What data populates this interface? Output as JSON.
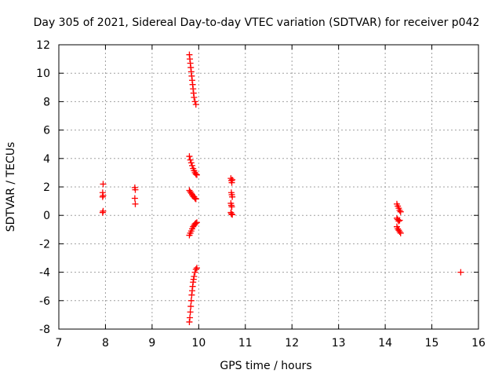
{
  "chart_data": {
    "type": "scatter",
    "title": "Day 305 of 2021, Sidereal Day-to-day VTEC variation (SDTVAR) for receiver p042",
    "xlabel": "GPS time / hours",
    "ylabel": "SDTVAR / TECUs",
    "xlim": [
      7,
      16
    ],
    "ylim": [
      -8,
      12
    ],
    "xticks": [
      7,
      8,
      9,
      10,
      11,
      12,
      13,
      14,
      15,
      16
    ],
    "yticks": [
      -8,
      -6,
      -4,
      -2,
      0,
      2,
      4,
      6,
      8,
      10,
      12
    ],
    "grid": true,
    "marker": "+",
    "series": [
      {
        "name": "SDTVAR",
        "color": "#ff0000",
        "points": [
          [
            7.95,
            2.2
          ],
          [
            7.94,
            1.6
          ],
          [
            7.95,
            1.4
          ],
          [
            7.94,
            1.3
          ],
          [
            7.95,
            0.3
          ],
          [
            7.94,
            0.2
          ],
          [
            8.63,
            1.95
          ],
          [
            8.64,
            1.8
          ],
          [
            8.63,
            1.2
          ],
          [
            8.64,
            0.8
          ],
          [
            9.8,
            11.3
          ],
          [
            9.81,
            11.0
          ],
          [
            9.82,
            10.7
          ],
          [
            9.83,
            10.4
          ],
          [
            9.84,
            10.1
          ],
          [
            9.85,
            9.8
          ],
          [
            9.86,
            9.5
          ],
          [
            9.87,
            9.2
          ],
          [
            9.88,
            8.9
          ],
          [
            9.89,
            8.6
          ],
          [
            9.9,
            8.3
          ],
          [
            9.92,
            8.0
          ],
          [
            9.94,
            7.8
          ],
          [
            9.8,
            4.15
          ],
          [
            9.82,
            3.9
          ],
          [
            9.84,
            3.7
          ],
          [
            9.86,
            3.5
          ],
          [
            9.88,
            3.3
          ],
          [
            9.9,
            3.15
          ],
          [
            9.92,
            3.0
          ],
          [
            9.94,
            2.9
          ],
          [
            9.96,
            2.85
          ],
          [
            9.8,
            1.75
          ],
          [
            9.82,
            1.65
          ],
          [
            9.84,
            1.55
          ],
          [
            9.86,
            1.45
          ],
          [
            9.88,
            1.35
          ],
          [
            9.9,
            1.3
          ],
          [
            9.92,
            1.2
          ],
          [
            9.94,
            1.15
          ],
          [
            9.8,
            -1.4
          ],
          [
            9.82,
            -1.25
          ],
          [
            9.84,
            -1.1
          ],
          [
            9.86,
            -0.95
          ],
          [
            9.88,
            -0.8
          ],
          [
            9.9,
            -0.7
          ],
          [
            9.92,
            -0.6
          ],
          [
            9.94,
            -0.55
          ],
          [
            9.96,
            -0.5
          ],
          [
            9.8,
            -7.5
          ],
          [
            9.81,
            -7.2
          ],
          [
            9.82,
            -6.8
          ],
          [
            9.83,
            -6.4
          ],
          [
            9.84,
            -6.0
          ],
          [
            9.85,
            -5.6
          ],
          [
            9.86,
            -5.3
          ],
          [
            9.87,
            -5.0
          ],
          [
            9.88,
            -4.7
          ],
          [
            9.89,
            -4.5
          ],
          [
            9.9,
            -4.3
          ],
          [
            9.92,
            -4.0
          ],
          [
            9.94,
            -3.8
          ],
          [
            9.96,
            -3.7
          ],
          [
            10.69,
            2.6
          ],
          [
            10.7,
            2.45
          ],
          [
            10.71,
            2.3
          ],
          [
            10.72,
            2.5
          ],
          [
            10.7,
            1.6
          ],
          [
            10.71,
            1.45
          ],
          [
            10.72,
            1.3
          ],
          [
            10.69,
            0.85
          ],
          [
            10.7,
            0.7
          ],
          [
            10.71,
            0.6
          ],
          [
            10.69,
            0.2
          ],
          [
            10.7,
            0.1
          ],
          [
            10.72,
            0.05
          ],
          [
            14.25,
            0.8
          ],
          [
            14.27,
            0.65
          ],
          [
            14.29,
            0.5
          ],
          [
            14.31,
            0.35
          ],
          [
            14.33,
            0.25
          ],
          [
            14.25,
            -0.2
          ],
          [
            14.27,
            -0.3
          ],
          [
            14.29,
            -0.4
          ],
          [
            14.31,
            -0.35
          ],
          [
            14.25,
            -0.8
          ],
          [
            14.27,
            -0.95
          ],
          [
            14.29,
            -1.05
          ],
          [
            14.31,
            -1.15
          ],
          [
            14.33,
            -1.25
          ],
          [
            15.62,
            -4.0
          ]
        ]
      }
    ]
  }
}
